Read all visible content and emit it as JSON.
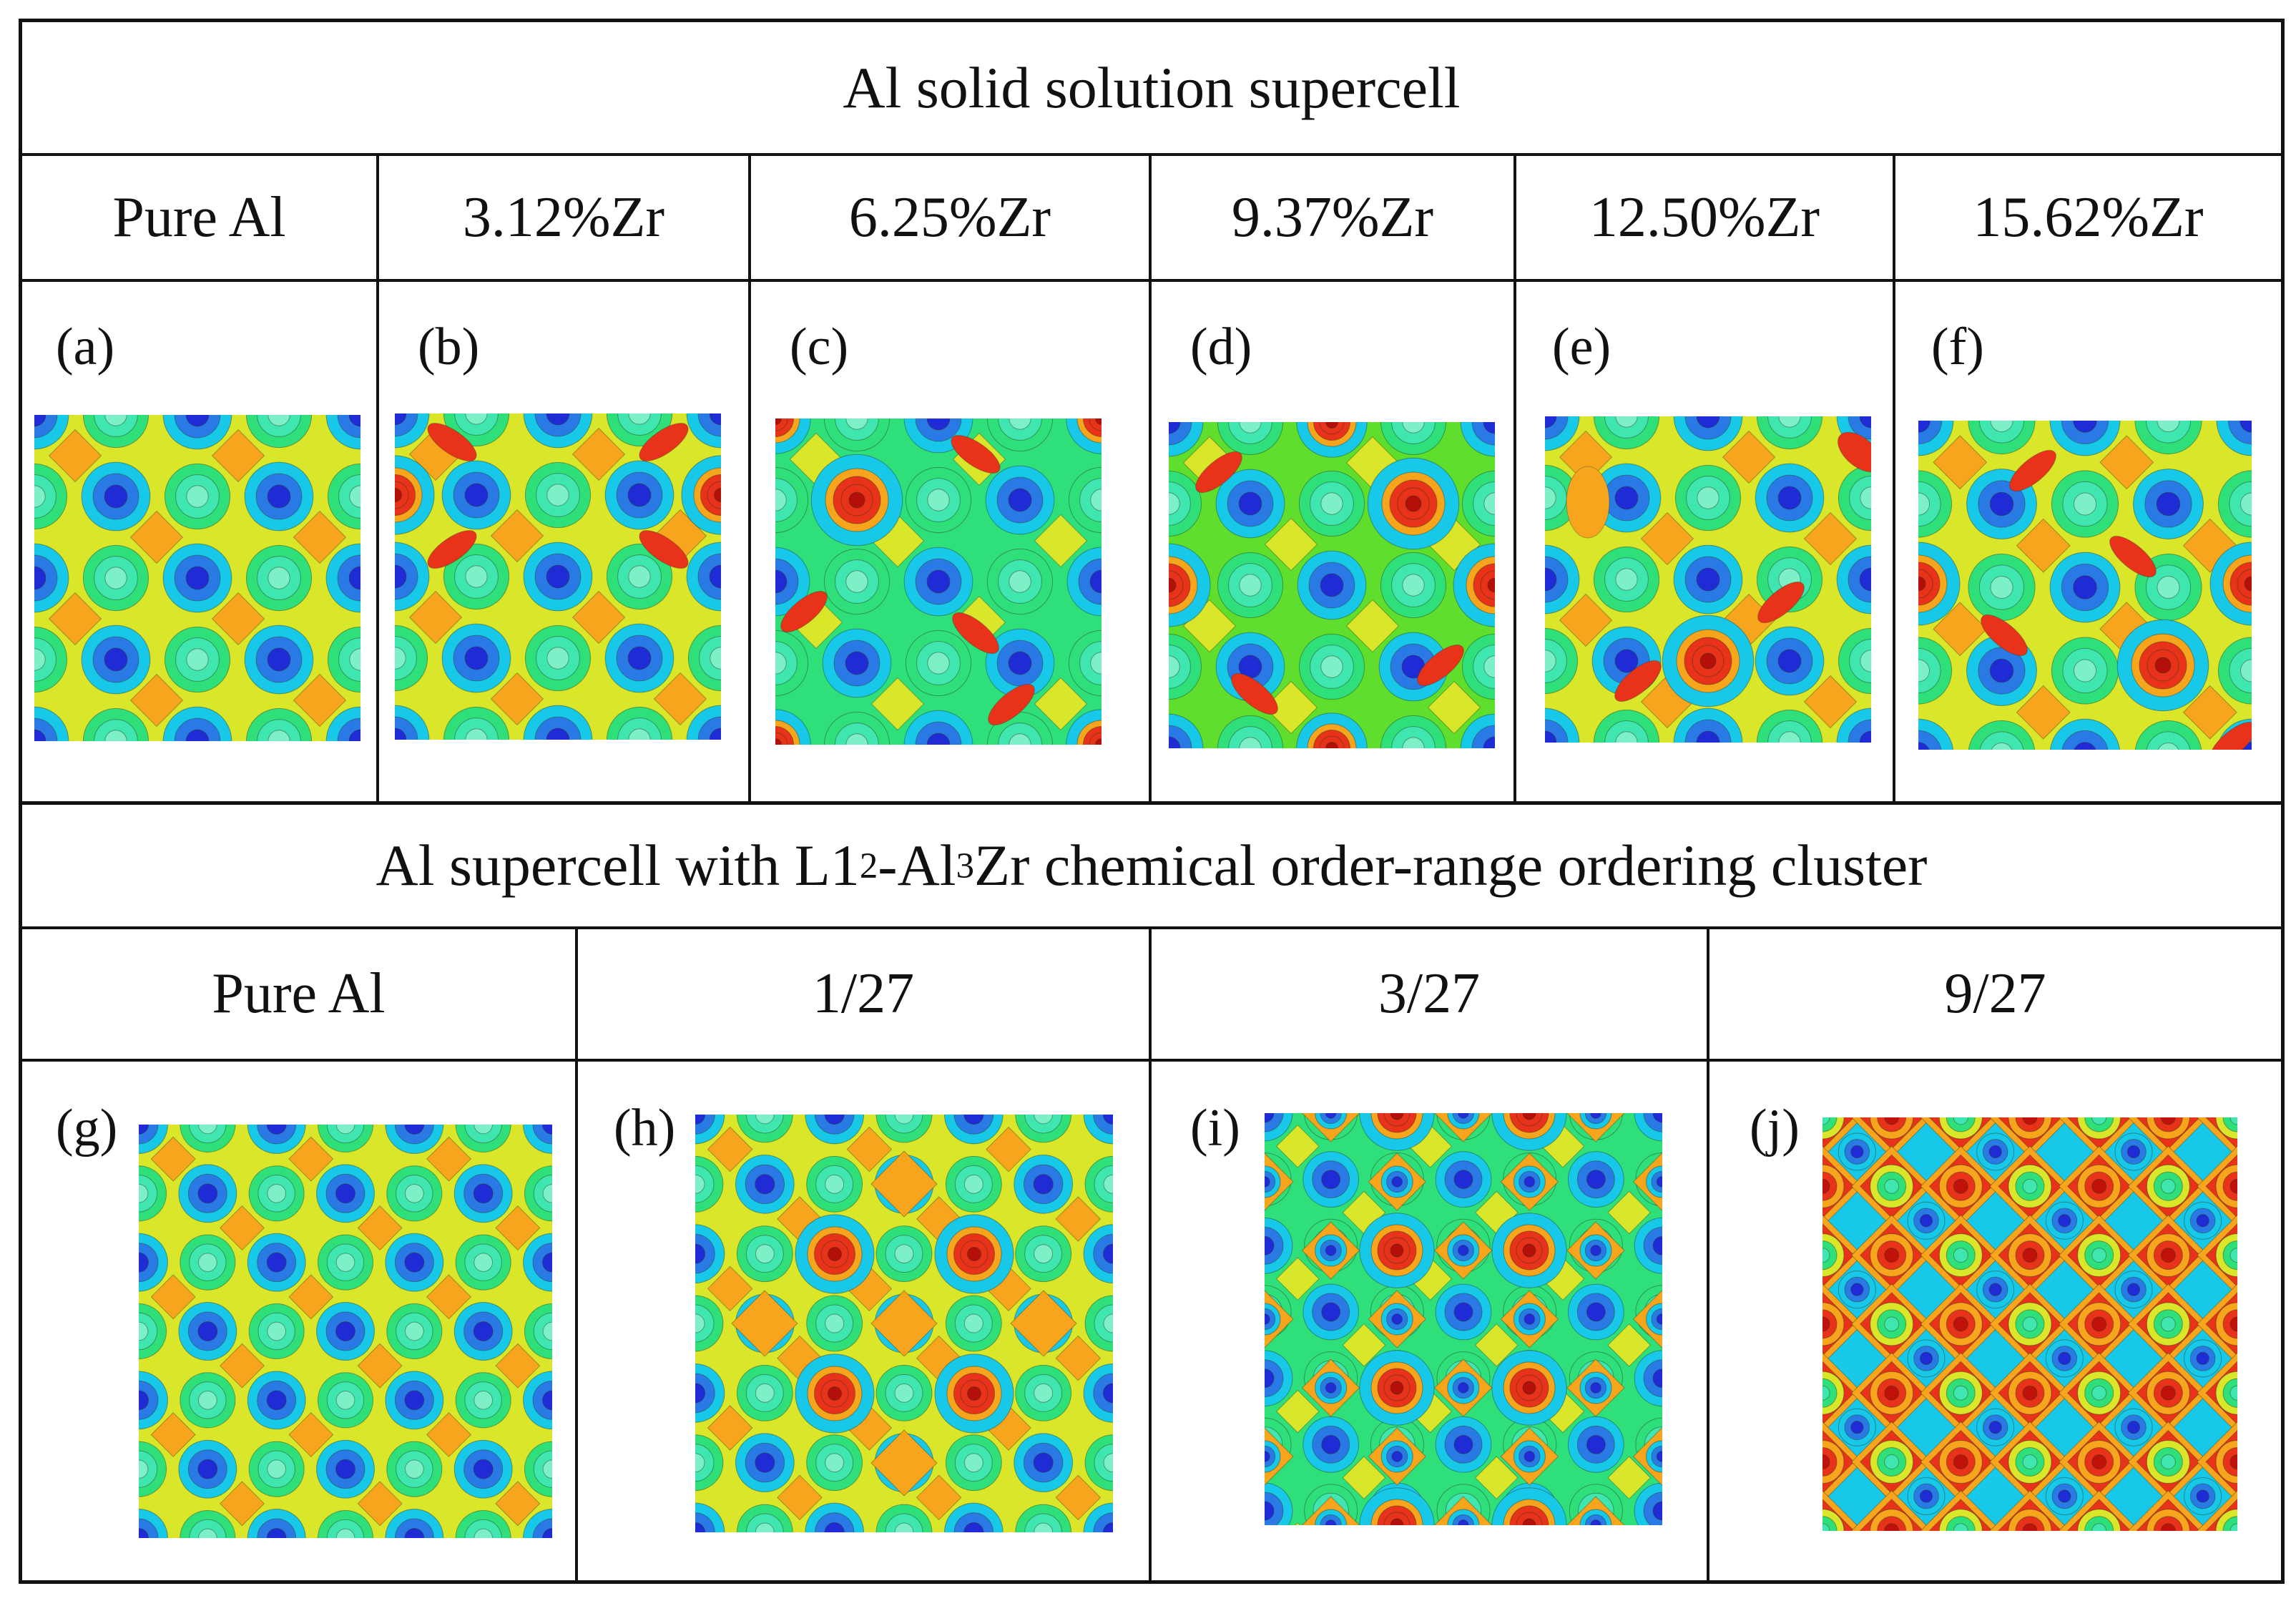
{
  "figure": {
    "top_section": {
      "title": "Al solid solution supercell",
      "columns": [
        {
          "header": "Pure Al",
          "panel": "(a)"
        },
        {
          "header": "3.12%Zr",
          "panel": "(b)"
        },
        {
          "header": "6.25%Zr",
          "panel": "(c)"
        },
        {
          "header": "9.37%Zr",
          "panel": "(d)"
        },
        {
          "header": "12.50%Zr",
          "panel": "(e)"
        },
        {
          "header": "15.62%Zr",
          "panel": "(f)"
        }
      ]
    },
    "bottom_section": {
      "title_parts": {
        "pre": "Al supercell with L1",
        "sub1": "2",
        "mid": "-Al",
        "sub2": "3",
        "post": "Zr chemical order-range ordering cluster"
      },
      "columns": [
        {
          "header": "Pure Al",
          "panel": "(g)"
        },
        {
          "header": "1/27",
          "panel": "(h)"
        },
        {
          "header": "3/27",
          "panel": "(i)"
        },
        {
          "header": "9/27",
          "panel": "(j)"
        }
      ]
    },
    "colormap": [
      "#1f2bd4",
      "#18c8e8",
      "#2fe07a",
      "#5fde2e",
      "#d9e62a",
      "#f7a51c",
      "#e8321a"
    ]
  }
}
